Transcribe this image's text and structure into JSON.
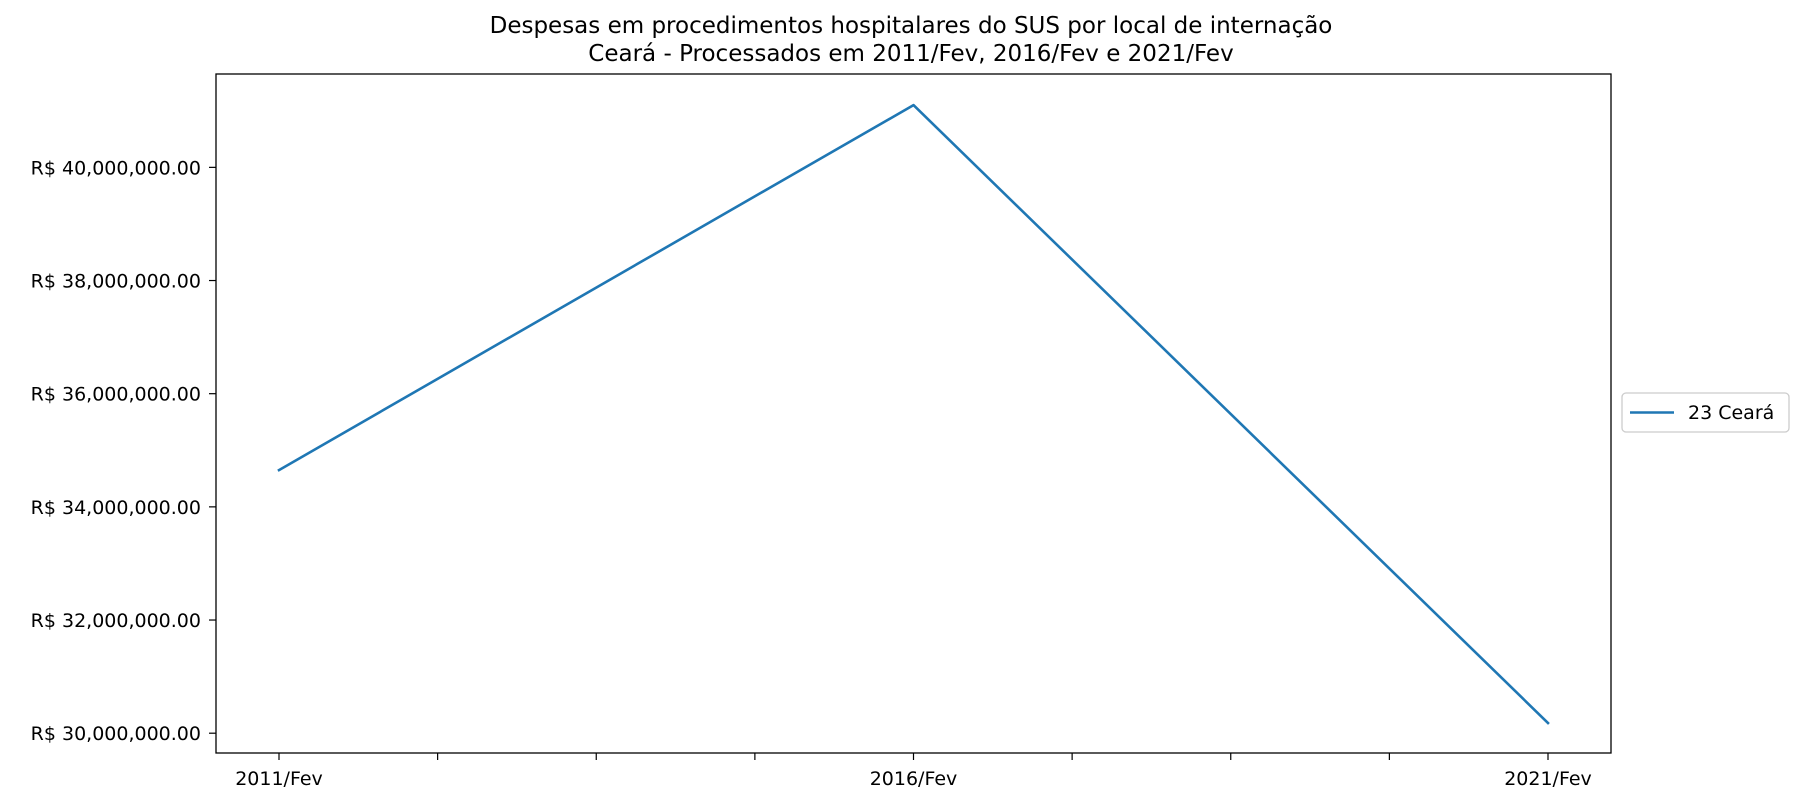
{
  "chart_data": {
    "type": "line",
    "title": "Despesas em procedimentos hospitalares do SUS por local de internação",
    "subtitle": "Ceará - Processados em 2011/Fev, 2016/Fev e 2021/Fev",
    "xlabel": "",
    "ylabel": "",
    "categories": [
      "2011/Fev",
      "2016/Fev",
      "2021/Fev"
    ],
    "series": [
      {
        "name": "23 Ceará",
        "color": "#1f77b4",
        "values": [
          34650000,
          41100000,
          30180000
        ]
      }
    ],
    "ylim": [
      29650000,
      41650000
    ],
    "yticks": [
      30000000,
      32000000,
      34000000,
      36000000,
      38000000,
      40000000
    ],
    "ytick_labels": [
      "R$ 30,000,000.00",
      "R$ 32,000,000.00",
      "R$ 34,000,000.00",
      "R$ 36,000,000.00",
      "R$ 38,000,000.00",
      "R$ 40,000,000.00"
    ],
    "xticks_minor_between": 3,
    "grid": false,
    "legend_position": "right"
  }
}
